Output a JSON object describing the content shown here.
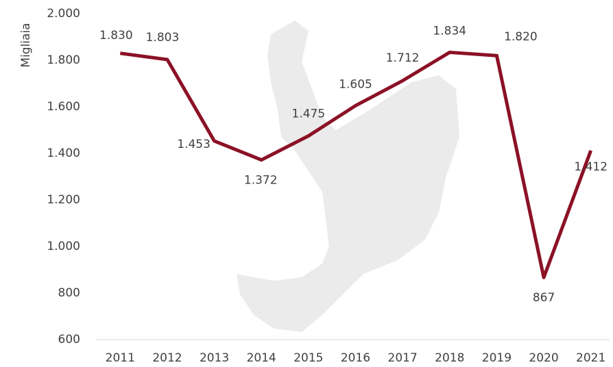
{
  "chart_data": {
    "type": "line",
    "y_label": "Migliaia",
    "categories": [
      "2011",
      "2012",
      "2013",
      "2014",
      "2015",
      "2016",
      "2017",
      "2018",
      "2019",
      "2020",
      "2021"
    ],
    "values": [
      1830,
      1803,
      1453,
      1372,
      1475,
      1605,
      1712,
      1834,
      1820,
      867,
      1412
    ],
    "value_labels": [
      "1.830",
      "1.803",
      "1.453",
      "1.372",
      "1.475",
      "1.605",
      "1.712",
      "1.834",
      "1.820",
      "867",
      "1.412"
    ],
    "color": "#8b1126",
    "ylim": [
      600,
      2000
    ],
    "yticks": [
      600,
      800,
      {
        "value": 1000,
        "label": "1.000"
      },
      {
        "value": 1200,
        "label": "1.200"
      },
      {
        "value": 1400,
        "label": "1.400"
      },
      {
        "value": 1600,
        "label": "1.600"
      },
      {
        "value": 1800,
        "label": "1.800"
      },
      {
        "value": 2000,
        "label": "2.000"
      }
    ],
    "grid": false
  }
}
